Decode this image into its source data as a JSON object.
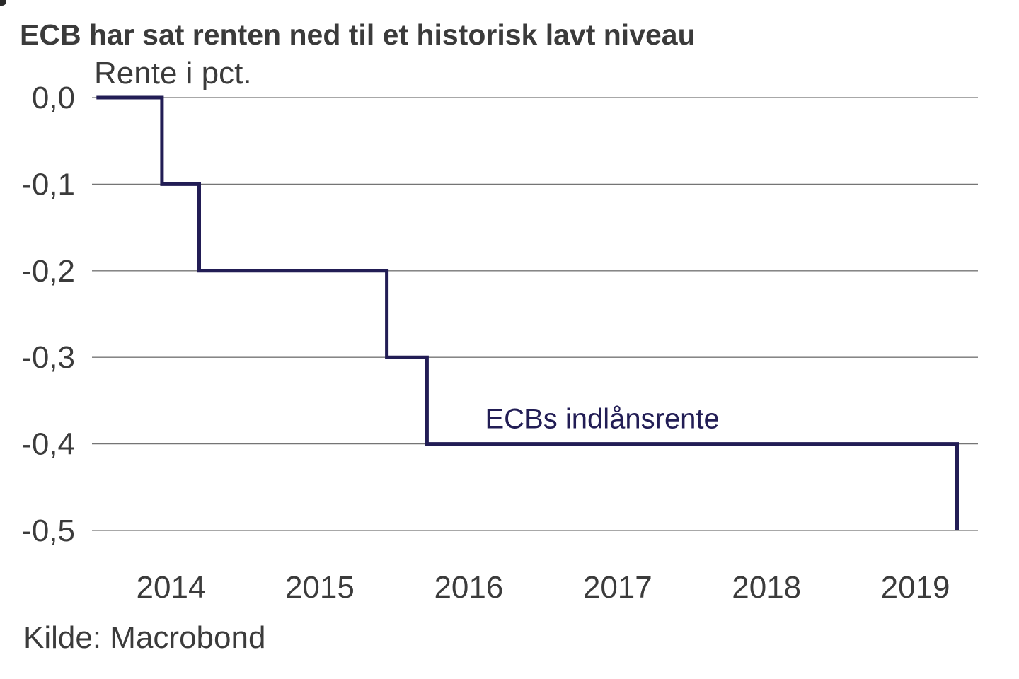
{
  "page": {
    "title": "ECB har sat renten ned til et historisk lavt niveau",
    "subtitle": "Rente i pct.",
    "source": "Kilde: Macrobond"
  },
  "colors": {
    "line": "#221d55",
    "text": "#3b3b3b",
    "gridline": "#757575",
    "background": "#ffffff"
  },
  "chart_data": {
    "type": "line",
    "step": true,
    "title": "ECB har sat renten ned til et historisk lavt niveau",
    "subtitle": "Rente i pct.",
    "xlabel": "",
    "ylabel": "Rente i pct.",
    "source": "Kilde: Macrobond",
    "grid": "horizontal",
    "legend_position": "inline-annotation",
    "xlim": [
      2013.97,
      2019.92
    ],
    "ylim": [
      0.0,
      -0.5
    ],
    "x_ticks": [
      {
        "label": "2014",
        "value": 2014.5
      },
      {
        "label": "2015",
        "value": 2015.5
      },
      {
        "label": "2016",
        "value": 2016.5
      },
      {
        "label": "2017",
        "value": 2017.5
      },
      {
        "label": "2018",
        "value": 2018.5
      },
      {
        "label": "2019",
        "value": 2019.5
      }
    ],
    "y_ticks": [
      {
        "label": "0,0",
        "value": 0.0
      },
      {
        "label": "-0,1",
        "value": -0.1
      },
      {
        "label": "-0,2",
        "value": -0.2
      },
      {
        "label": "-0,3",
        "value": -0.3
      },
      {
        "label": "-0,4",
        "value": -0.4
      },
      {
        "label": "-0,5",
        "value": -0.5
      }
    ],
    "series": [
      {
        "name": "ECBs indlånsrente",
        "points": [
          {
            "x": 2014.0,
            "y": 0.0
          },
          {
            "x": 2014.44,
            "y": -0.1
          },
          {
            "x": 2014.69,
            "y": -0.2
          },
          {
            "x": 2015.95,
            "y": -0.3
          },
          {
            "x": 2016.22,
            "y": -0.4
          },
          {
            "x": 2019.78,
            "y": -0.5
          }
        ]
      }
    ],
    "annotation": {
      "text": "ECBs indlånsrente",
      "x": 2016.61,
      "y": -0.382
    }
  }
}
